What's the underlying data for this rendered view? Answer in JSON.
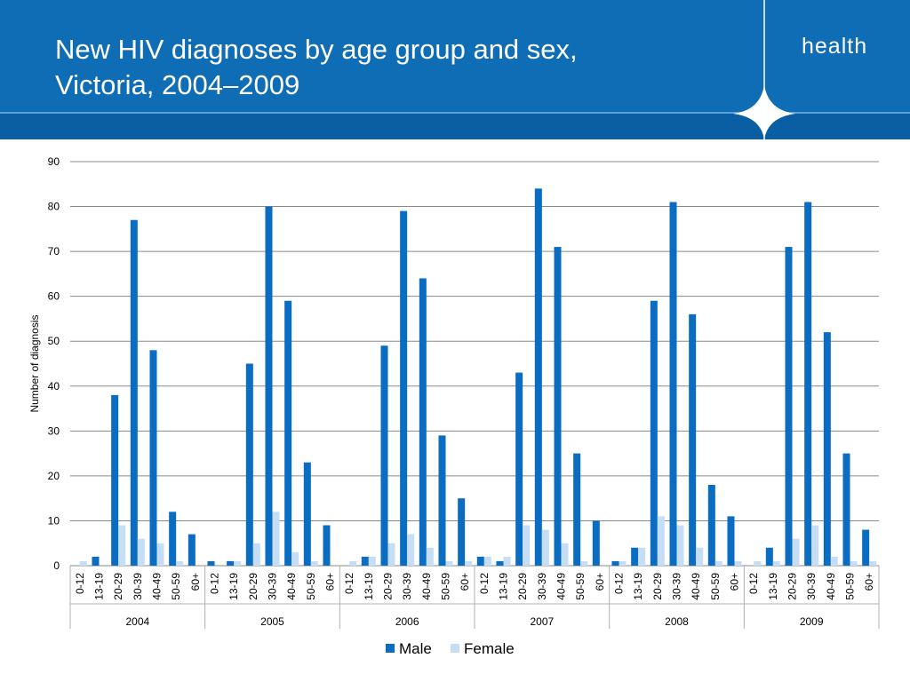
{
  "header": {
    "title_line1": "New HIV diagnoses by age group and sex,",
    "title_line2": "Victoria, 2004–2009",
    "brand": "health",
    "background_color": "#0f6db5"
  },
  "chart_data": {
    "type": "bar",
    "title": "",
    "xlabel": "",
    "ylabel": "Number of diagnosis",
    "ylim": [
      0,
      90
    ],
    "yticks": [
      0,
      10,
      20,
      30,
      40,
      50,
      60,
      70,
      80,
      90
    ],
    "grid": true,
    "legend_position": "bottom",
    "groups": [
      "2004",
      "2005",
      "2006",
      "2007",
      "2008",
      "2009"
    ],
    "categories": [
      "0-12",
      "13-19",
      "20-29",
      "30-39",
      "40-49",
      "50-59",
      "60+"
    ],
    "series": [
      {
        "name": "Male",
        "color": "#0a6dc2",
        "values": [
          [
            0,
            2,
            38,
            77,
            48,
            12,
            7
          ],
          [
            1,
            1,
            45,
            80,
            59,
            23,
            9
          ],
          [
            0,
            2,
            49,
            79,
            64,
            29,
            15
          ],
          [
            2,
            1,
            43,
            84,
            71,
            25,
            10
          ],
          [
            1,
            4,
            59,
            81,
            56,
            18,
            11
          ],
          [
            0,
            4,
            71,
            81,
            52,
            25,
            8
          ]
        ]
      },
      {
        "name": "Female",
        "color": "#c5def5",
        "values": [
          [
            1,
            0,
            9,
            6,
            5,
            1,
            0
          ],
          [
            0,
            1,
            5,
            12,
            3,
            1,
            0
          ],
          [
            1,
            2,
            5,
            7,
            4,
            1,
            1
          ],
          [
            2,
            2,
            9,
            8,
            5,
            1,
            0
          ],
          [
            1,
            4,
            11,
            9,
            4,
            1,
            1
          ],
          [
            1,
            1,
            6,
            9,
            2,
            1,
            1
          ]
        ]
      }
    ]
  }
}
